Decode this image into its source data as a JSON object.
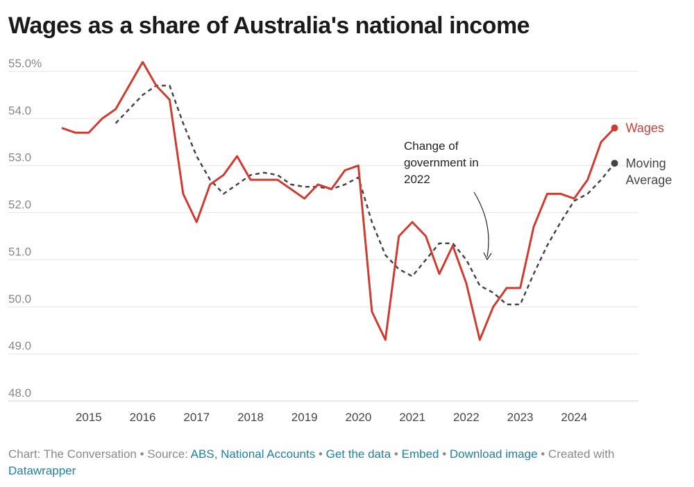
{
  "title": "Wages as a share of Australia's national income",
  "footer": {
    "prefix": "Chart: The Conversation • Source: ",
    "source_link": "ABS, National Accounts",
    "sep1": " • ",
    "get_data": "Get the data",
    "sep2": " • ",
    "embed": "Embed",
    "sep3": "  • ",
    "download": "Download image",
    "sep4": " • Created with ",
    "datawrapper": "Datawrapper"
  },
  "colors": {
    "wages": "#d03b30",
    "moving_average": "#444444",
    "grid": "#e3e3e3",
    "link": "#1d81a2"
  },
  "annotation": {
    "lines": [
      "Change of",
      "government in",
      "2022"
    ]
  },
  "chart_data": {
    "type": "line",
    "title": "Wages as a share of Australia's national income",
    "xlabel": "",
    "ylabel": "",
    "ylim": [
      48.0,
      55.0
    ],
    "yticks": [
      {
        "value": 55.0,
        "label": "55.0%"
      },
      {
        "value": 54.0,
        "label": "54.0"
      },
      {
        "value": 53.0,
        "label": "53.0"
      },
      {
        "value": 52.0,
        "label": "52.0"
      },
      {
        "value": 51.0,
        "label": "51.0"
      },
      {
        "value": 50.0,
        "label": "50.0"
      },
      {
        "value": 49.0,
        "label": "49.0"
      },
      {
        "value": 48.0,
        "label": "48.0"
      }
    ],
    "xticks": [
      {
        "value": 2015.25,
        "label": "2015"
      },
      {
        "value": 2016.25,
        "label": "2016"
      },
      {
        "value": 2017.25,
        "label": "2017"
      },
      {
        "value": 2018.25,
        "label": "2018"
      },
      {
        "value": 2019.25,
        "label": "2019"
      },
      {
        "value": 2020.25,
        "label": "2020"
      },
      {
        "value": 2021.25,
        "label": "2021"
      },
      {
        "value": 2022.25,
        "label": "2022"
      },
      {
        "value": 2023.25,
        "label": "2023"
      },
      {
        "value": 2024.25,
        "label": "2024"
      }
    ],
    "xlim": [
      2014.75,
      2025.25
    ],
    "grid": true,
    "legend": "inline labels at line ends",
    "series": [
      {
        "name": "Wages",
        "style": "solid",
        "points": [
          [
            2014.75,
            53.8
          ],
          [
            2015.0,
            53.7
          ],
          [
            2015.25,
            53.7
          ],
          [
            2015.5,
            54.0
          ],
          [
            2015.75,
            54.2
          ],
          [
            2016.0,
            54.7
          ],
          [
            2016.25,
            55.2
          ],
          [
            2016.5,
            54.7
          ],
          [
            2016.75,
            54.4
          ],
          [
            2017.0,
            52.4
          ],
          [
            2017.25,
            51.8
          ],
          [
            2017.5,
            52.6
          ],
          [
            2017.75,
            52.8
          ],
          [
            2018.0,
            53.2
          ],
          [
            2018.25,
            52.7
          ],
          [
            2018.5,
            52.7
          ],
          [
            2018.75,
            52.7
          ],
          [
            2019.0,
            52.5
          ],
          [
            2019.25,
            52.3
          ],
          [
            2019.5,
            52.6
          ],
          [
            2019.75,
            52.5
          ],
          [
            2020.0,
            52.9
          ],
          [
            2020.25,
            53.0
          ],
          [
            2020.5,
            49.9
          ],
          [
            2020.75,
            49.3
          ],
          [
            2021.0,
            51.5
          ],
          [
            2021.25,
            51.8
          ],
          [
            2021.5,
            51.5
          ],
          [
            2021.75,
            50.7
          ],
          [
            2022.0,
            51.3
          ],
          [
            2022.25,
            50.5
          ],
          [
            2022.5,
            49.3
          ],
          [
            2022.75,
            50.0
          ],
          [
            2023.0,
            50.4
          ],
          [
            2023.25,
            50.4
          ],
          [
            2023.5,
            51.7
          ],
          [
            2023.75,
            52.4
          ],
          [
            2024.0,
            52.4
          ],
          [
            2024.25,
            52.3
          ],
          [
            2024.5,
            52.7
          ],
          [
            2024.75,
            53.5
          ],
          [
            2025.0,
            53.8
          ]
        ]
      },
      {
        "name": "Moving Average",
        "style": "dashed",
        "points": [
          [
            2015.75,
            53.9
          ],
          [
            2016.0,
            54.2
          ],
          [
            2016.25,
            54.5
          ],
          [
            2016.5,
            54.7
          ],
          [
            2016.75,
            54.7
          ],
          [
            2017.0,
            53.9
          ],
          [
            2017.25,
            53.2
          ],
          [
            2017.5,
            52.7
          ],
          [
            2017.75,
            52.4
          ],
          [
            2018.0,
            52.6
          ],
          [
            2018.25,
            52.8
          ],
          [
            2018.5,
            52.85
          ],
          [
            2018.75,
            52.8
          ],
          [
            2019.0,
            52.6
          ],
          [
            2019.25,
            52.55
          ],
          [
            2019.5,
            52.55
          ],
          [
            2019.75,
            52.5
          ],
          [
            2020.0,
            52.6
          ],
          [
            2020.25,
            52.75
          ],
          [
            2020.5,
            51.8
          ],
          [
            2020.75,
            51.1
          ],
          [
            2021.0,
            50.8
          ],
          [
            2021.25,
            50.65
          ],
          [
            2021.5,
            51.0
          ],
          [
            2021.75,
            51.35
          ],
          [
            2022.0,
            51.35
          ],
          [
            2022.25,
            51.0
          ],
          [
            2022.5,
            50.45
          ],
          [
            2022.75,
            50.3
          ],
          [
            2023.0,
            50.05
          ],
          [
            2023.25,
            50.05
          ],
          [
            2023.5,
            50.7
          ],
          [
            2023.75,
            51.3
          ],
          [
            2024.0,
            51.8
          ],
          [
            2024.25,
            52.25
          ],
          [
            2024.5,
            52.4
          ],
          [
            2024.75,
            52.7
          ],
          [
            2025.0,
            53.05
          ]
        ]
      }
    ]
  }
}
